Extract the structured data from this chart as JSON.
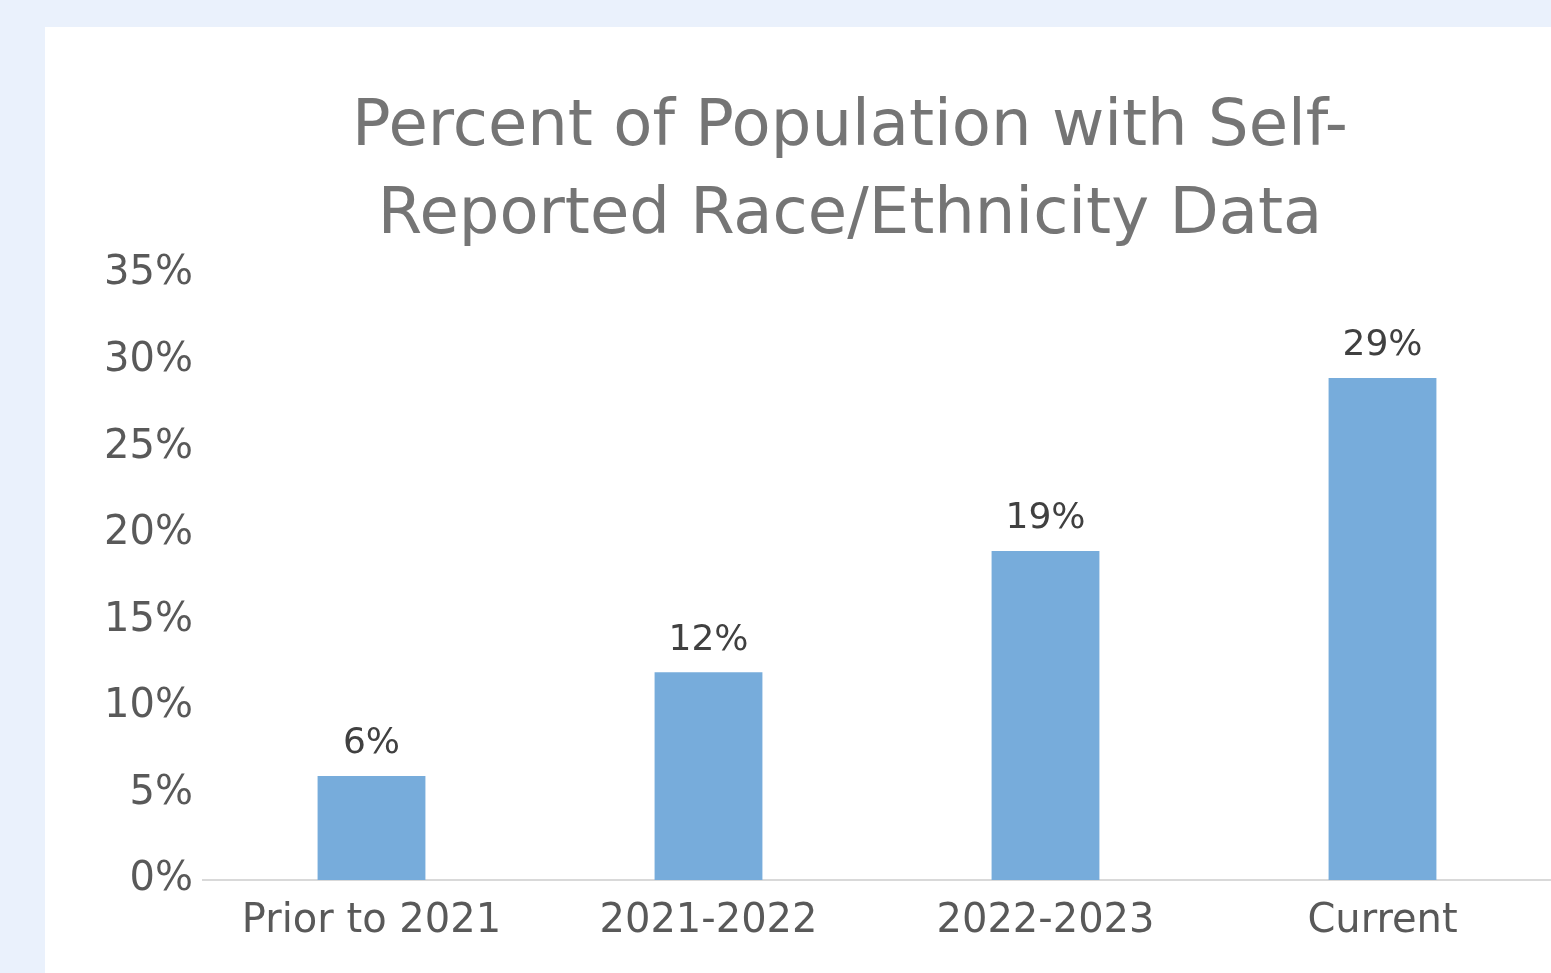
{
  "chart_data": {
    "type": "bar",
    "title": "Percent of Population with Self-Reported Race/Ethnicity Data",
    "categories": [
      "Prior to 2021",
      "2021-2022",
      "2022-2023",
      "Current"
    ],
    "values": [
      6,
      12,
      19,
      29
    ],
    "color": "#77acdb",
    "value_labels": [
      "6%",
      "12%",
      "19%",
      "29%"
    ],
    "ylim": [
      0,
      35
    ],
    "yticks": [
      {
        "value": 0,
        "label": "0%"
      },
      {
        "value": 5,
        "label": "5%"
      },
      {
        "value": 10,
        "label": "10%"
      },
      {
        "value": 15,
        "label": "15%"
      },
      {
        "value": 20,
        "label": "20%"
      },
      {
        "value": 25,
        "label": "25%"
      },
      {
        "value": 30,
        "label": "30%"
      },
      {
        "value": 35,
        "label": "35%"
      }
    ],
    "grid": false,
    "legend": false
  }
}
